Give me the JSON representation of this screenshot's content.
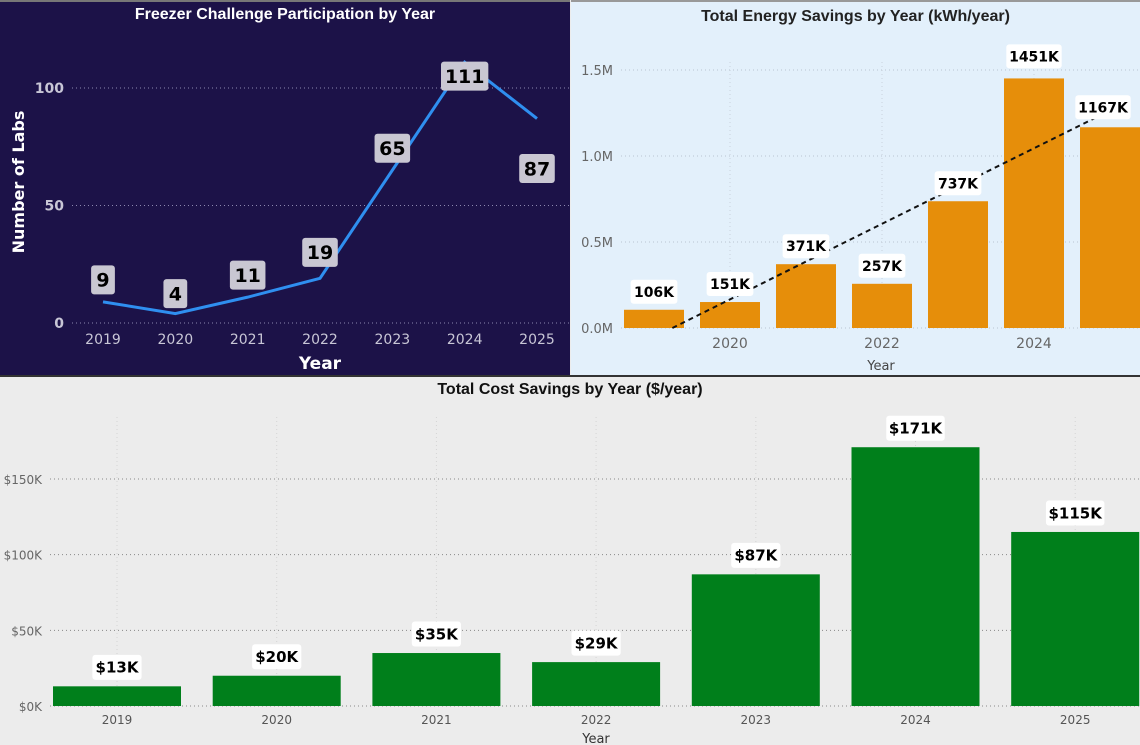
{
  "chart_data": [
    {
      "type": "line",
      "title": "Freezer Challenge Participation by Year",
      "xlabel": "Year",
      "ylabel": "Number of Labs",
      "categories": [
        "2019",
        "2020",
        "2021",
        "2022",
        "2023",
        "2024",
        "2025"
      ],
      "values": [
        9,
        4,
        11,
        19,
        65,
        111,
        87
      ],
      "data_labels": [
        "9",
        "4",
        "11",
        "19",
        "65",
        "111",
        "87"
      ],
      "yticks": [
        0,
        50,
        100
      ],
      "ytick_labels": [
        "0",
        "50",
        "100"
      ],
      "ylim": [
        0,
        115
      ],
      "grid": true,
      "colors": {
        "background": "#1c1248",
        "line": "#2f8ff0",
        "label_box": "#c9c7d2"
      }
    },
    {
      "type": "bar",
      "title": "Total Energy Savings by Year (kWh/year)",
      "xlabel": "Year",
      "ylabel": "",
      "categories": [
        "2019",
        "2020",
        "2021",
        "2022",
        "2023",
        "2024",
        "2025"
      ],
      "xtick_labels": [
        "2020",
        "2022",
        "2024"
      ],
      "values": [
        106000,
        151000,
        371000,
        257000,
        737000,
        1451000,
        1167000
      ],
      "data_labels": [
        "106K",
        "151K",
        "371K",
        "257K",
        "737K",
        "1451K",
        "1167K"
      ],
      "yticks": [
        0,
        500000,
        1000000,
        1500000
      ],
      "ytick_labels": [
        "0.0M",
        "0.5M",
        "1.0M",
        "1.5M"
      ],
      "ylim": [
        0,
        1600000
      ],
      "trendline": "linear",
      "grid": true,
      "colors": {
        "background": "#e3f0fb",
        "bar": "#e68e0a",
        "trendline": "#111111"
      }
    },
    {
      "type": "bar",
      "title": "Total Cost Savings by Year ($/year)",
      "xlabel": "Year",
      "ylabel": "",
      "categories": [
        "2019",
        "2020",
        "2021",
        "2022",
        "2023",
        "2024",
        "2025"
      ],
      "values": [
        13000,
        20000,
        35000,
        29000,
        87000,
        171000,
        115000
      ],
      "data_labels": [
        "$13K",
        "$20K",
        "$35K",
        "$29K",
        "$87K",
        "$171K",
        "$115K"
      ],
      "yticks": [
        0,
        50000,
        100000,
        150000
      ],
      "ytick_labels": [
        "$0K",
        "$50K",
        "$100K",
        "$150K"
      ],
      "ylim": [
        0,
        180000
      ],
      "grid": true,
      "colors": {
        "background": "#ececec",
        "bar": "#007f1b"
      }
    }
  ]
}
